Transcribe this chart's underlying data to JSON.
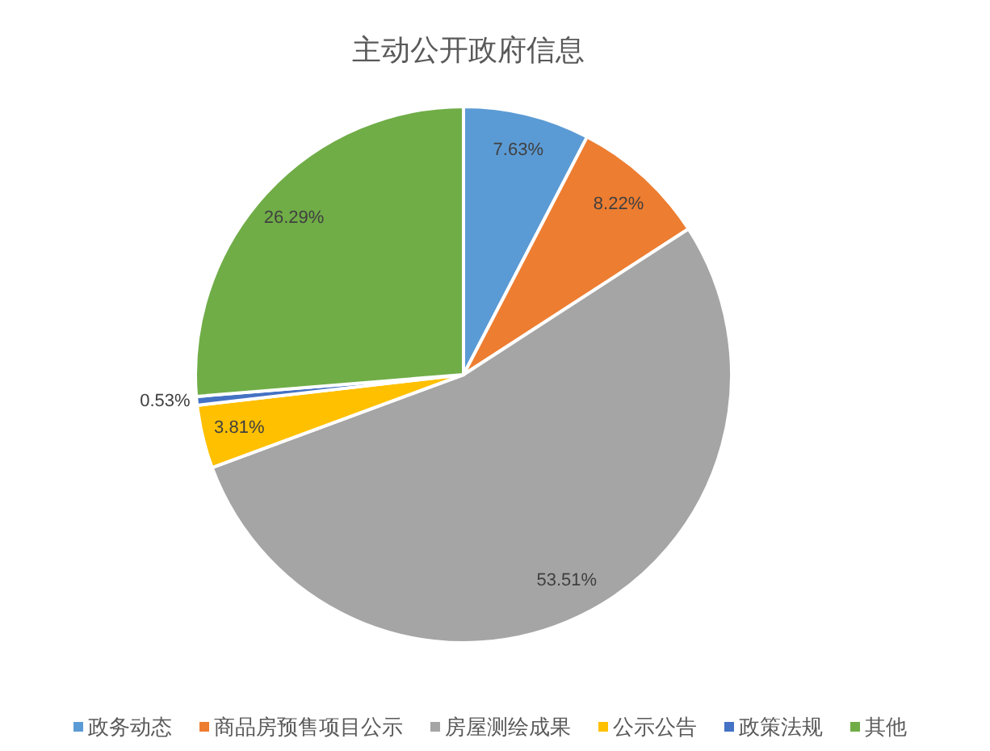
{
  "chart_data": {
    "type": "pie",
    "title": "主动公开政府信息",
    "categories": [
      "政务动态",
      "商品房预售项目公示",
      "房屋测绘成果",
      "公示公告",
      "政策法规",
      "其他"
    ],
    "values": [
      7.63,
      8.22,
      53.51,
      3.81,
      0.53,
      26.29
    ],
    "colors": [
      "#5b9bd5",
      "#ed7d31",
      "#a5a5a5",
      "#ffc000",
      "#4472c4",
      "#70ad47"
    ],
    "value_labels": [
      "7.63%",
      "8.22%",
      "53.51%",
      "3.81%",
      "0.53%",
      "26.29%"
    ],
    "legend": "bottom"
  }
}
